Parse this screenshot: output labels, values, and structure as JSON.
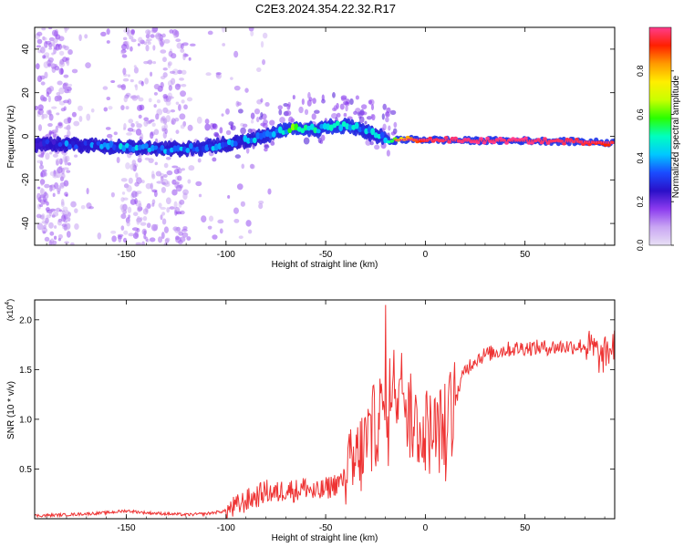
{
  "figure": {
    "title": "C2E3.2024.354.22.32.R17"
  },
  "chart_data": [
    {
      "type": "heatmap",
      "title": "C2E3.2024.354.22.32.R17",
      "xlabel": "Height of straight line (km)",
      "ylabel": "Frequency (Hz)",
      "xlim": [
        -196,
        95
      ],
      "ylim": [
        -50,
        50
      ],
      "xticks": [
        -150,
        -100,
        -50,
        0,
        50
      ],
      "yticks": [
        -40,
        -20,
        0,
        20,
        40
      ],
      "grid": false,
      "ridge": {
        "x": [
          -196,
          -170,
          -150,
          -130,
          -110,
          -95,
          -80,
          -65,
          -55,
          -45,
          -35,
          -25,
          -18,
          -10,
          0,
          20,
          50,
          80,
          95
        ],
        "y": [
          -3.5,
          -4,
          -5,
          -6,
          -5,
          -3,
          0,
          4,
          3,
          5,
          4,
          1,
          -2,
          -1.5,
          -1.5,
          -2,
          -2,
          -2.5,
          -3
        ],
        "amplitude": [
          0.3,
          0.35,
          0.4,
          0.35,
          0.4,
          0.35,
          0.4,
          0.55,
          0.45,
          0.5,
          0.45,
          0.4,
          0.5,
          0.8,
          0.95,
          1.0,
          1.0,
          0.95,
          0.9
        ]
      },
      "colorbar": {
        "label": "Normalized spectral amplitude",
        "range": [
          0,
          1
        ],
        "ticks": [
          "0.0",
          "0.2",
          "0.4",
          "0.6",
          "0.8"
        ],
        "colors": [
          "#e8e0f5",
          "#c9a6f3",
          "#8c3bef",
          "#2a10c8",
          "#1a4cff",
          "#00c8ff",
          "#00ffc0",
          "#2aff00",
          "#c8ff00",
          "#ffee00",
          "#ff9a00",
          "#ff2000",
          "#ff3c8c"
        ]
      }
    },
    {
      "type": "line",
      "xlabel": "Height of straight line (km)",
      "ylabel": "SNR (10 * v/v)",
      "y_scale_label": "(x10",
      "y_scale_exponent": "4",
      "xlim": [
        -196,
        95
      ],
      "ylim": [
        0,
        2.2
      ],
      "xticks": [
        -150,
        -100,
        -50,
        0,
        50
      ],
      "yticks": [
        0.5,
        1.0,
        1.5,
        2.0
      ],
      "ytick_labels": [
        "0.5",
        "1.0",
        "1.5",
        "2.0"
      ],
      "grid": false,
      "color": "#ee3333",
      "x": [
        -196,
        -180,
        -160,
        -150,
        -140,
        -130,
        -120,
        -110,
        -100,
        -95,
        -90,
        -85,
        -80,
        -75,
        -70,
        -65,
        -60,
        -55,
        -50,
        -45,
        -40,
        -35,
        -30,
        -25,
        -20,
        -15,
        -12,
        -10,
        -5,
        0,
        5,
        10,
        15,
        20,
        25,
        30,
        40,
        50,
        60,
        70,
        80,
        85,
        88,
        90,
        95
      ],
      "y": [
        0.03,
        0.04,
        0.06,
        0.08,
        0.06,
        0.05,
        0.04,
        0.05,
        0.08,
        0.12,
        0.18,
        0.22,
        0.28,
        0.25,
        0.3,
        0.28,
        0.32,
        0.25,
        0.3,
        0.35,
        0.4,
        0.55,
        0.75,
        0.95,
        1.15,
        1.35,
        1.5,
        1.1,
        0.95,
        0.9,
        0.85,
        0.95,
        1.2,
        1.5,
        1.6,
        1.65,
        1.7,
        1.72,
        1.72,
        1.73,
        1.74,
        1.7,
        1.6,
        1.65,
        1.75
      ]
    }
  ]
}
